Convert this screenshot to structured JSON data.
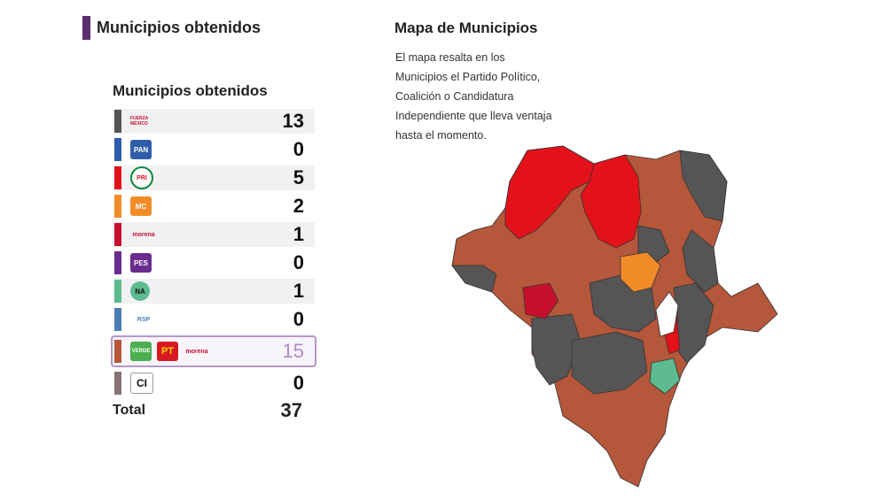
{
  "section": {
    "title": "Municipios obtenidos"
  },
  "table": {
    "title": "Municipios obtenidos",
    "rows": [
      {
        "party": "Fuerza por México",
        "logo_text": "FUERZA MÉXICO",
        "color": "#555555",
        "count": "13"
      },
      {
        "party": "PAN",
        "logo_text": "PAN",
        "color": "#2f5dab",
        "count": "0"
      },
      {
        "party": "PRI",
        "logo_text": "PRI",
        "color": "#e3111a",
        "count": "5"
      },
      {
        "party": "Movimiento Ciudadano",
        "logo_text": "MC",
        "color": "#f28c28",
        "count": "2"
      },
      {
        "party": "morena",
        "logo_text": "morena",
        "color": "#c8102e",
        "count": "1"
      },
      {
        "party": "PES",
        "logo_text": "PES",
        "color": "#6a2c8f",
        "count": "0"
      },
      {
        "party": "Nueva Alianza",
        "logo_text": "NA",
        "color": "#5dbb8f",
        "count": "1"
      },
      {
        "party": "Redes Sociales Progresistas",
        "logo_text": "RSP",
        "color": "#4a7fb5",
        "count": "0"
      },
      {
        "party": "Coalición VERDE PT morena",
        "logo_texts": [
          "VERDE",
          "PT",
          "morena"
        ],
        "color": "#b5573a",
        "count": "15"
      },
      {
        "party": "Candidatura Independiente",
        "logo_text": "CI",
        "color": "#8a7272",
        "count": "0"
      }
    ],
    "total_label": "Total",
    "total": "37"
  },
  "map": {
    "title": "Mapa de Municipios",
    "description_lines": [
      "El mapa resalta en los",
      "Municipios el Partido Político,",
      "Coalición o Candidatura",
      "Independiente que lleva ventaja",
      "hasta el momento."
    ],
    "colors": {
      "coalicion": "#b5573a",
      "fuerza": "#555555",
      "pri": "#e3111a",
      "mc": "#f28c28",
      "morena": "#c8102e",
      "na": "#5dbb8f"
    }
  }
}
